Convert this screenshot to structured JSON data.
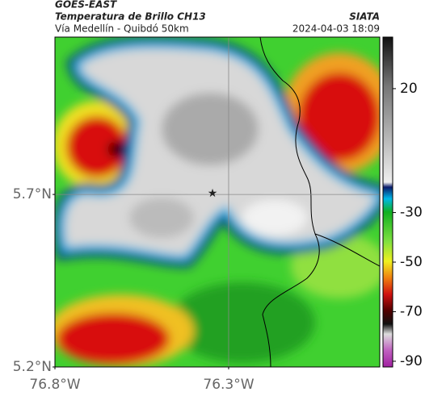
{
  "header": {
    "title": "GOES-EAST",
    "subtitle": "Temperatura de Brillo CH13",
    "location": "Vía Medellín - Quibdó 50km",
    "source": "SIATA",
    "datetime": "2024-04-03 18:09"
  },
  "map": {
    "lat_lim": [
      5.2,
      6.156
    ],
    "lon_lim": [
      -76.8,
      -75.865
    ],
    "lat_ticks": [
      {
        "value": 5.7,
        "label": "5.7°N"
      },
      {
        "value": 5.2,
        "label": "5.2°N"
      }
    ],
    "lon_ticks": [
      {
        "value": -76.8,
        "label": "76.8°W"
      },
      {
        "value": -76.3,
        "label": "76.3°W"
      }
    ]
  },
  "colorbar": {
    "limits": [
      40.8,
      -92.3
    ],
    "ticks": [
      20,
      -30,
      -50,
      -70,
      -90
    ]
  }
}
